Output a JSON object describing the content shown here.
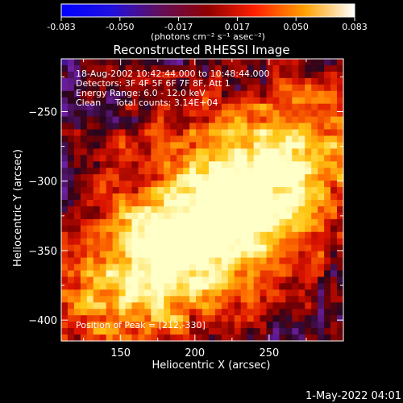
{
  "chart_data": {
    "type": "heatmap",
    "title": "Reconstructed RHESSI Image",
    "xlabel": "Heliocentric X (arcsec)",
    "ylabel": "Heliocentric Y (arcsec)",
    "xlim": [
      110,
      300
    ],
    "ylim": [
      -415,
      -212
    ],
    "x_ticks": [
      150,
      200,
      250
    ],
    "y_ticks": [
      -250,
      -300,
      -350,
      -400
    ],
    "colorbar": {
      "ticks": [
        "-0.083",
        "-0.050",
        "-0.017",
        "0.017",
        "0.050",
        "0.083"
      ],
      "range": [
        -0.083,
        0.083
      ],
      "units_label": "(photons cm⁻² s⁻¹ asec⁻²)",
      "colors": [
        "#0000ff",
        "#4020c0",
        "#801010",
        "#d00000",
        "#ff6000",
        "#ffc000",
        "#ffffff"
      ]
    },
    "annotations": {
      "time": "18-Aug-2002 10:42:44.000 to 10:48:44.000",
      "detectors": "Detectors: 3F 4F 5F 6F 7F 8F, Att 1",
      "energy": "Energy Range: 6.0 - 12.0 keV",
      "clean": "Clean     Total counts: 3.14E+04",
      "peak": "Position of Peak = [212,-330]"
    },
    "peak_position": [
      212,
      -330
    ],
    "total_counts": 31400,
    "energy_range_kev": [
      6.0,
      12.0
    ]
  },
  "footer": {
    "date": "1-May-2022 04:01"
  }
}
